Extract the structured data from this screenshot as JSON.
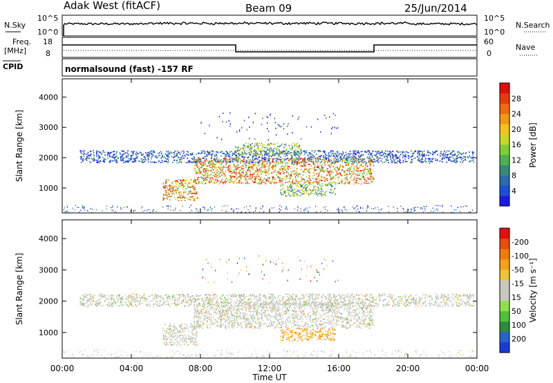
{
  "header": {
    "station": "Adak West (fitACF)",
    "beam": "Beam 09",
    "date": "25/Jun/2014"
  },
  "panels": {
    "noise": {
      "left_label": "N.Sky",
      "right_label": "N.Search",
      "left_ticks": [
        "10^5",
        "10^0"
      ],
      "right_ticks": [
        "10^5",
        "10^0"
      ]
    },
    "freq": {
      "left_label": "Freq.",
      "left_unit": "[MHz]",
      "right_label": "Nave",
      "left_ticks": [
        "18",
        "8"
      ],
      "right_ticks": [
        "60",
        "0"
      ]
    },
    "cpid": {
      "label": "CPID",
      "text": "normalsound (fast) -157 RF"
    }
  },
  "chart_data": [
    {
      "type": "heatmap",
      "name": "power",
      "ylabel": "Slant Range [km]",
      "ylim": [
        180,
        4600
      ],
      "yticks": [
        1000,
        2000,
        3000,
        4000
      ],
      "xlim": [
        0,
        24
      ],
      "colorbar": {
        "label": "Power [dB]",
        "ticks": [
          "4",
          "8",
          "12",
          "16",
          "20",
          "24",
          "28"
        ],
        "colors": [
          "#1a1ae6",
          "#1e4fd0",
          "#2f6aa8",
          "#3a8a7a",
          "#4fb04f",
          "#7fcc3a",
          "#c8d82a",
          "#f2c21a",
          "#f29a14",
          "#ef6a10",
          "#e83a10",
          "#dd1010"
        ]
      },
      "features": [
        {
          "hours": [
            1.0,
            23.8
          ],
          "range_km": [
            1850,
            2250
          ],
          "level": "low"
        },
        {
          "hours": [
            7.6,
            18.0
          ],
          "range_km": [
            1150,
            2000
          ],
          "level": "high"
        },
        {
          "hours": [
            5.8,
            7.8
          ],
          "range_km": [
            600,
            1300
          ],
          "level": "high"
        },
        {
          "hours": [
            12.6,
            15.8
          ],
          "range_km": [
            750,
            1150
          ],
          "level": "medium"
        },
        {
          "hours": [
            10.0,
            13.8
          ],
          "range_km": [
            2100,
            2500
          ],
          "level": "medium"
        }
      ]
    },
    {
      "type": "heatmap",
      "name": "velocity",
      "ylabel": "Slant Range [km]",
      "ylim": [
        180,
        4600
      ],
      "yticks": [
        1000,
        2000,
        3000,
        4000
      ],
      "xlim": [
        0,
        24
      ],
      "xlabel": "Time UT",
      "xticks": [
        "00:00",
        "04:00",
        "08:00",
        "12:00",
        "16:00",
        "20:00",
        "00:00"
      ],
      "colorbar": {
        "label": "Velocity [m s⁻¹]",
        "ticks": [
          "200",
          "100",
          "50",
          "15",
          "-15",
          "-50",
          "-100",
          "-200"
        ],
        "colors": [
          "#1a3ad6",
          "#2a62c8",
          "#2f8a3a",
          "#4fbf3a",
          "#8ee04a",
          "#c8c8c0",
          "#c8c8c0",
          "#f0c43a",
          "#f2a21a",
          "#f07a10",
          "#e84a10",
          "#e01010"
        ]
      },
      "features": [
        {
          "hours": [
            1.0,
            23.8
          ],
          "range_km": [
            1850,
            2250
          ],
          "level": "ground"
        },
        {
          "hours": [
            7.6,
            18.0
          ],
          "range_km": [
            1150,
            2000
          ],
          "level": "ground"
        },
        {
          "hours": [
            5.8,
            7.8
          ],
          "range_km": [
            600,
            1300
          ],
          "level": "ground"
        },
        {
          "hours": [
            12.6,
            15.8
          ],
          "range_km": [
            750,
            1150
          ],
          "level": "away"
        }
      ]
    }
  ]
}
